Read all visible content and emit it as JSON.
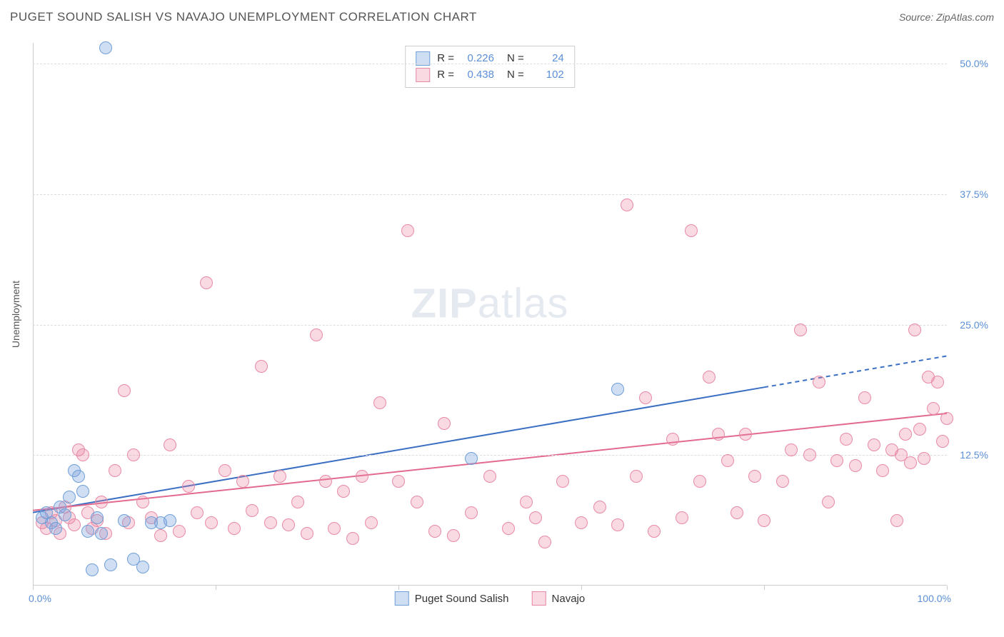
{
  "title": "PUGET SOUND SALISH VS NAVAJO UNEMPLOYMENT CORRELATION CHART",
  "source": "Source: ZipAtlas.com",
  "ylabel": "Unemployment",
  "watermark_zip": "ZIP",
  "watermark_atlas": "atlas",
  "chart": {
    "type": "scatter",
    "xlim": [
      0,
      100
    ],
    "ylim": [
      0,
      52
    ],
    "y_gridlines": [
      12.5,
      25.0,
      37.5,
      50.0
    ],
    "ytick_labels": [
      "12.5%",
      "25.0%",
      "37.5%",
      "50.0%"
    ],
    "xtick_positions": [
      0,
      20,
      40,
      60,
      80,
      100
    ],
    "x_min_label": "0.0%",
    "x_max_label": "100.0%",
    "grid_color": "#dddddd",
    "axis_color": "#cccccc",
    "background_color": "#ffffff",
    "marker_radius": 9,
    "marker_border_width": 1.5,
    "line_width": 2,
    "series": [
      {
        "name": "Puget Sound Salish",
        "color_fill": "rgba(120,160,220,0.35)",
        "color_stroke": "#6f9fd8",
        "line_color": "#3b6fc4",
        "R": "0.226",
        "N": "24",
        "regression": {
          "x1": 0,
          "y1": 7.0,
          "x2": 80,
          "y2": 19.0,
          "dash_x2": 100,
          "dash_y2": 22.0
        },
        "points": [
          [
            1,
            6.5
          ],
          [
            1.5,
            7
          ],
          [
            2,
            6
          ],
          [
            2.5,
            5.5
          ],
          [
            3,
            7.5
          ],
          [
            3.5,
            6.8
          ],
          [
            4,
            8.5
          ],
          [
            4.5,
            11
          ],
          [
            5,
            10.5
          ],
          [
            5.5,
            9
          ],
          [
            6,
            5.2
          ],
          [
            6.5,
            1.5
          ],
          [
            7,
            6.5
          ],
          [
            7.5,
            5
          ],
          [
            8,
            51.5
          ],
          [
            8.5,
            2
          ],
          [
            10,
            6.2
          ],
          [
            11,
            2.5
          ],
          [
            12,
            1.8
          ],
          [
            13,
            6
          ],
          [
            14,
            6
          ],
          [
            15,
            6.2
          ],
          [
            48,
            12.2
          ],
          [
            64,
            18.8
          ]
        ]
      },
      {
        "name": "Navajo",
        "color_fill": "rgba(235,130,160,0.30)",
        "color_stroke": "#e78aa6",
        "line_color": "#e26a8f",
        "R": "0.438",
        "N": "102",
        "regression": {
          "x1": 0,
          "y1": 7.2,
          "x2": 100,
          "y2": 16.5,
          "dash_x2": 100,
          "dash_y2": 16.5
        },
        "points": [
          [
            1,
            6
          ],
          [
            1.5,
            5.5
          ],
          [
            2,
            7
          ],
          [
            2.5,
            6.2
          ],
          [
            3,
            5
          ],
          [
            3.5,
            7.5
          ],
          [
            4,
            6.5
          ],
          [
            4.5,
            5.8
          ],
          [
            5,
            13
          ],
          [
            5.5,
            12.5
          ],
          [
            6,
            7
          ],
          [
            6.5,
            5.5
          ],
          [
            7,
            6.2
          ],
          [
            7.5,
            8
          ],
          [
            8,
            5
          ],
          [
            9,
            11
          ],
          [
            10,
            18.7
          ],
          [
            10.5,
            6
          ],
          [
            11,
            12.5
          ],
          [
            12,
            8
          ],
          [
            13,
            6.5
          ],
          [
            14,
            4.8
          ],
          [
            15,
            13.5
          ],
          [
            16,
            5.2
          ],
          [
            17,
            9.5
          ],
          [
            18,
            7
          ],
          [
            19,
            29
          ],
          [
            19.5,
            6
          ],
          [
            21,
            11
          ],
          [
            22,
            5.5
          ],
          [
            23,
            10
          ],
          [
            24,
            7.2
          ],
          [
            25,
            21
          ],
          [
            26,
            6
          ],
          [
            27,
            10.5
          ],
          [
            28,
            5.8
          ],
          [
            29,
            8
          ],
          [
            30,
            5
          ],
          [
            31,
            24
          ],
          [
            32,
            10
          ],
          [
            33,
            5.5
          ],
          [
            34,
            9
          ],
          [
            35,
            4.5
          ],
          [
            36,
            10.5
          ],
          [
            37,
            6
          ],
          [
            38,
            17.5
          ],
          [
            40,
            10
          ],
          [
            41,
            34
          ],
          [
            42,
            8
          ],
          [
            44,
            5.2
          ],
          [
            45,
            15.5
          ],
          [
            46,
            4.8
          ],
          [
            48,
            7
          ],
          [
            50,
            10.5
          ],
          [
            52,
            5.5
          ],
          [
            54,
            8
          ],
          [
            55,
            6.5
          ],
          [
            56,
            4.2
          ],
          [
            58,
            10
          ],
          [
            60,
            6
          ],
          [
            62,
            7.5
          ],
          [
            64,
            5.8
          ],
          [
            65,
            36.5
          ],
          [
            66,
            10.5
          ],
          [
            67,
            18
          ],
          [
            68,
            5.2
          ],
          [
            70,
            14
          ],
          [
            71,
            6.5
          ],
          [
            72,
            34
          ],
          [
            73,
            10
          ],
          [
            74,
            20
          ],
          [
            75,
            14.5
          ],
          [
            76,
            12
          ],
          [
            77,
            7
          ],
          [
            78,
            14.5
          ],
          [
            79,
            10.5
          ],
          [
            80,
            6.2
          ],
          [
            82,
            10
          ],
          [
            83,
            13
          ],
          [
            84,
            24.5
          ],
          [
            85,
            12.5
          ],
          [
            86,
            19.5
          ],
          [
            87,
            8
          ],
          [
            88,
            12
          ],
          [
            89,
            14
          ],
          [
            90,
            11.5
          ],
          [
            91,
            18
          ],
          [
            92,
            13.5
          ],
          [
            93,
            11
          ],
          [
            94,
            13
          ],
          [
            94.5,
            6.2
          ],
          [
            95,
            12.5
          ],
          [
            95.5,
            14.5
          ],
          [
            96,
            11.8
          ],
          [
            96.5,
            24.5
          ],
          [
            97,
            15
          ],
          [
            97.5,
            12.2
          ],
          [
            98,
            20
          ],
          [
            98.5,
            17
          ],
          [
            99,
            19.5
          ],
          [
            99.5,
            13.8
          ],
          [
            100,
            16
          ]
        ]
      }
    ]
  },
  "stats_box": {
    "r_label": "R =",
    "n_label": "N ="
  },
  "legend_labels": [
    "Puget Sound Salish",
    "Navajo"
  ]
}
